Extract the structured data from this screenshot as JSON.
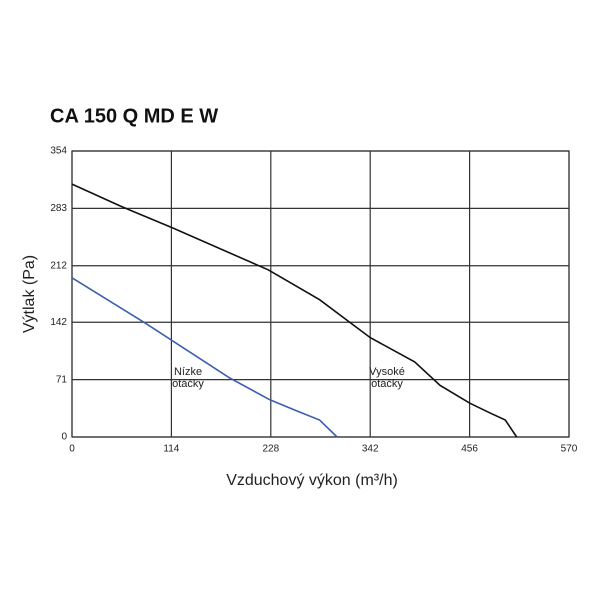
{
  "chart_data": {
    "type": "line",
    "title": "CA 150 Q MD E W",
    "x_label": "Vzduchový výkon (m³/h)",
    "y_label": "Výtlak (Pa)",
    "xlim": [
      0,
      570
    ],
    "ylim": [
      0,
      354
    ],
    "xticks": [
      0,
      114,
      228,
      342,
      456,
      570
    ],
    "yticks": [
      0,
      71,
      142,
      212,
      283,
      354
    ],
    "grid": true,
    "series": [
      {
        "name": "Nízke otáčky",
        "color": "#3a5fb0",
        "x": [
          0,
          84,
          181,
          227,
          256,
          284,
          304
        ],
        "values": [
          197,
          141,
          73,
          46,
          33,
          21,
          0
        ]
      },
      {
        "name": "Vysoké otáčky",
        "color": "#111111",
        "x": [
          0,
          55,
          115,
          225,
          284,
          342,
          393,
          422,
          456,
          479,
          497,
          510
        ],
        "values": [
          313,
          286,
          259,
          207,
          170,
          123,
          93,
          64,
          42,
          30,
          21,
          0
        ]
      }
    ]
  }
}
